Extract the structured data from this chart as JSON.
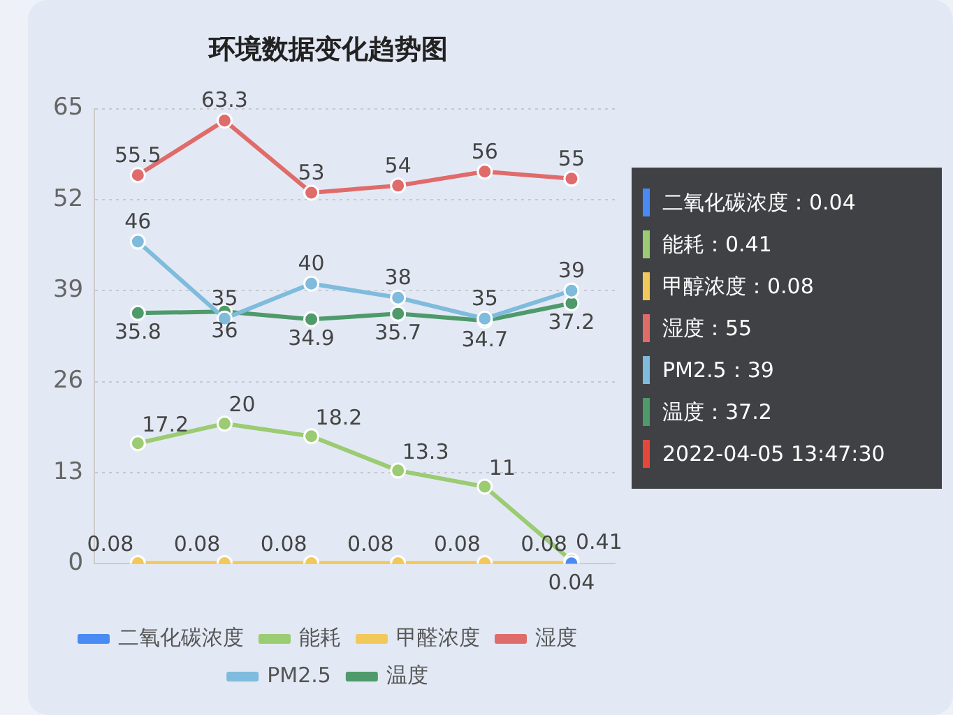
{
  "chart_data": {
    "type": "line",
    "title": "环境数据变化趋势图",
    "categories": [
      null,
      null,
      null,
      null,
      null,
      null
    ],
    "series": [
      {
        "name": "二氧化碳浓度",
        "color": "#4a8af4",
        "values": [
          null,
          null,
          null,
          null,
          null,
          0.04
        ]
      },
      {
        "name": "能耗",
        "color": "#9bcb73",
        "values": [
          17.2,
          20,
          18.2,
          13.3,
          11,
          0.41
        ]
      },
      {
        "name": "甲醛浓度",
        "color": "#f2c85b",
        "values": [
          0.08,
          0.08,
          0.08,
          0.08,
          0.08,
          0.08
        ]
      },
      {
        "name": "湿度",
        "color": "#e06b6b",
        "values": [
          55.5,
          63.3,
          53,
          54,
          56,
          55
        ]
      },
      {
        "name": "PM2.5",
        "color": "#7fbbdc",
        "values": [
          46,
          35,
          40,
          38,
          35,
          39
        ]
      },
      {
        "name": "温度",
        "color": "#4e9a6b",
        "values": [
          35.8,
          36,
          34.9,
          35.7,
          34.7,
          37.2
        ]
      }
    ],
    "ylim": [
      0,
      65
    ],
    "yticks": [
      0,
      13,
      26,
      39,
      52,
      65
    ],
    "grid": "y",
    "legend": "bottom",
    "marker": "circle",
    "data_labels": true,
    "annotations": [
      "二氧化碳浓度：0.04",
      "能耗：0.41",
      "甲醇浓度：0.08",
      "湿度：55",
      "PM2.5：39",
      "温度：37.2",
      "2022-04-05 13:47:30"
    ]
  }
}
